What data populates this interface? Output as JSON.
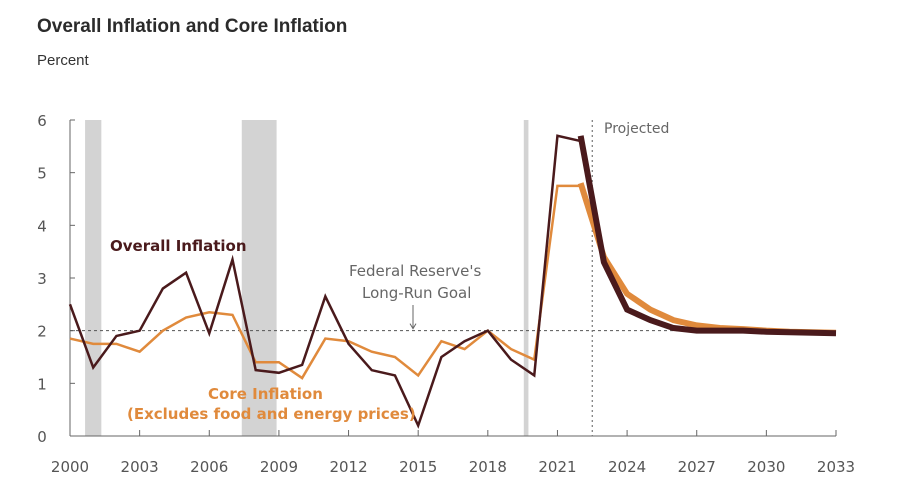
{
  "title": "Overall Inflation and Core Inflation",
  "subtitle": "Percent",
  "chart_data": {
    "type": "line",
    "title": "Overall Inflation and Core Inflation",
    "ylabel": "Percent",
    "xlabel": "",
    "xlim": [
      2000,
      2033
    ],
    "ylim": [
      0,
      6
    ],
    "x_ticks": [
      "2000",
      "2003",
      "2006",
      "2009",
      "2012",
      "2015",
      "2018",
      "2021",
      "2024",
      "2027",
      "2030",
      "2033"
    ],
    "y_ticks": [
      "0",
      "1",
      "2",
      "3",
      "4",
      "5",
      "6"
    ],
    "reference_line": {
      "value": 2,
      "label": "Federal Reserve's Long-Run Goal",
      "style": "dotted"
    },
    "projection_start": 2022.5,
    "projection_label": "Projected",
    "recessions": [
      [
        2000.65,
        2001.35
      ],
      [
        2007.4,
        2008.9
      ],
      [
        2019.55,
        2019.75
      ]
    ],
    "series": [
      {
        "name": "Overall Inflation",
        "color": "#4a1a1c",
        "label_text": "Overall Inflation",
        "historical": {
          "x": [
            2000,
            2001,
            2002,
            2003,
            2004,
            2005,
            2006,
            2007,
            2008,
            2009,
            2010,
            2011,
            2012,
            2013,
            2014,
            2015,
            2016,
            2017,
            2018,
            2019,
            2020,
            2021,
            2022
          ],
          "values": [
            2.5,
            1.3,
            1.9,
            2.0,
            2.8,
            3.1,
            1.95,
            3.35,
            1.25,
            1.2,
            1.35,
            2.65,
            1.75,
            1.25,
            1.15,
            0.2,
            1.5,
            1.8,
            2.0,
            1.45,
            1.15,
            5.7,
            5.6
          ]
        },
        "projected": {
          "x": [
            2022,
            2023,
            2024,
            2025,
            2026,
            2027,
            2028,
            2029,
            2030,
            2031,
            2032,
            2033
          ],
          "values": [
            5.7,
            3.3,
            2.4,
            2.2,
            2.05,
            2.0,
            2.0,
            2.0,
            1.98,
            1.97,
            1.96,
            1.95
          ]
        }
      },
      {
        "name": "Core Inflation",
        "color": "#e08a3c",
        "label_text": [
          "Core Inflation",
          "(Excludes food and energy prices)"
        ],
        "historical": {
          "x": [
            2000,
            2001,
            2002,
            2003,
            2004,
            2005,
            2006,
            2007,
            2008,
            2009,
            2010,
            2011,
            2012,
            2013,
            2014,
            2015,
            2016,
            2017,
            2018,
            2019,
            2020,
            2021,
            2022
          ],
          "values": [
            1.85,
            1.75,
            1.75,
            1.6,
            2.0,
            2.25,
            2.35,
            2.3,
            1.4,
            1.4,
            1.1,
            1.85,
            1.8,
            1.6,
            1.5,
            1.15,
            1.8,
            1.65,
            2.0,
            1.65,
            1.45,
            4.75,
            4.75
          ]
        },
        "projected": {
          "x": [
            2022,
            2023,
            2024,
            2025,
            2026,
            2027,
            2028,
            2029,
            2030,
            2031,
            2032,
            2033
          ],
          "values": [
            4.8,
            3.4,
            2.7,
            2.4,
            2.2,
            2.1,
            2.05,
            2.03,
            2.0,
            1.98,
            1.97,
            1.96
          ]
        }
      }
    ],
    "annotations": {
      "goal_label": [
        "Federal Reserve's",
        "Long-Run Goal"
      ],
      "overall_label": "Overall Inflation",
      "core_label": [
        "Core Inflation",
        "(Excludes food and energy prices)"
      ],
      "projected_label": "Projected"
    },
    "grid": false,
    "legend": "inline-labels"
  }
}
